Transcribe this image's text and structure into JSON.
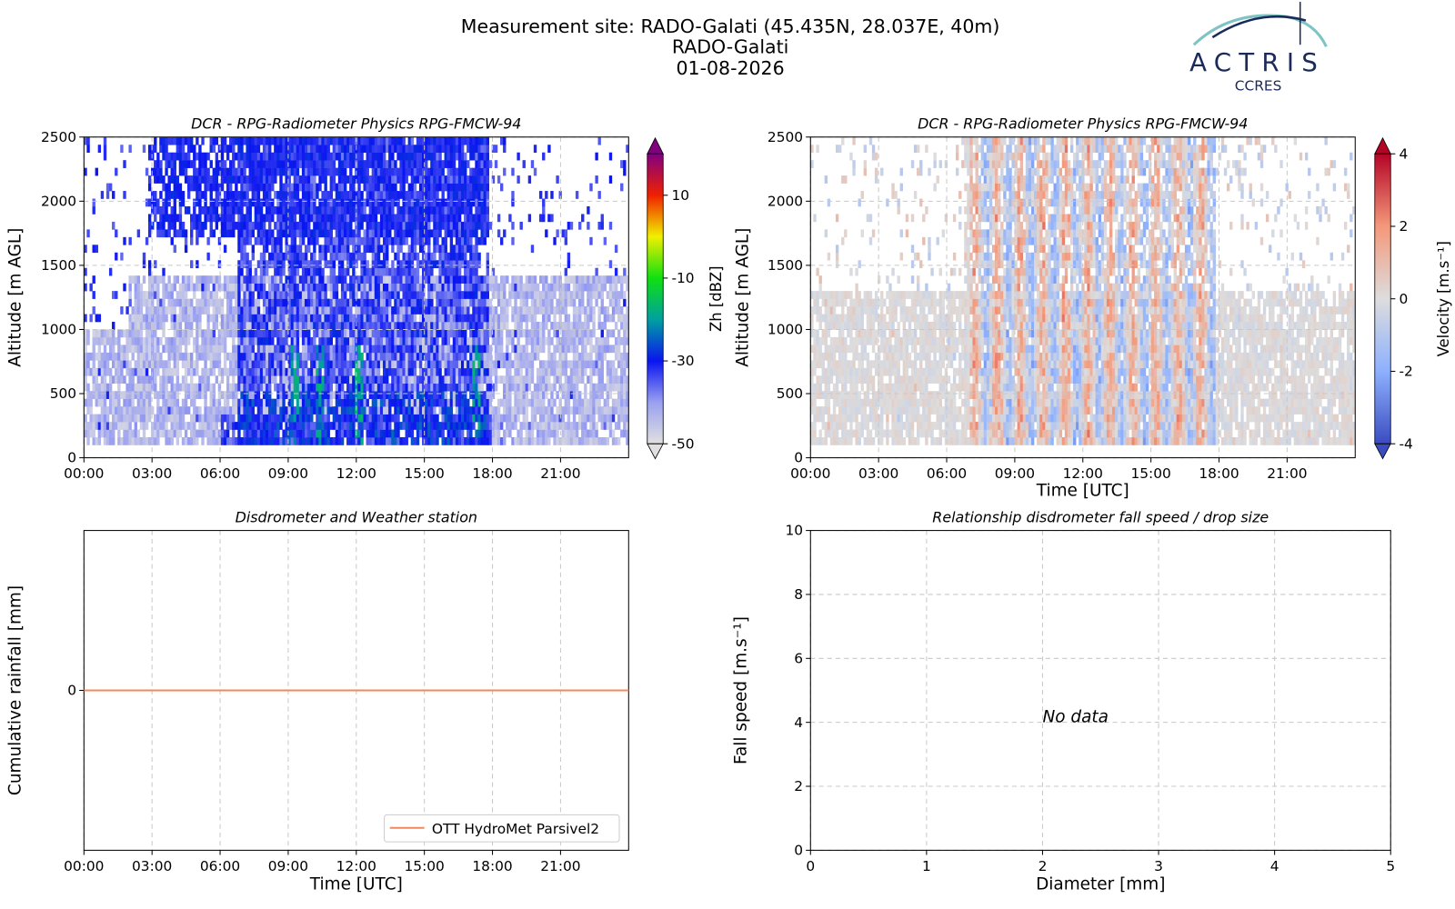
{
  "header": {
    "title": "Measurement site: RADO-Galati (45.435N, 28.037E, 40m)",
    "site": "RADO-Galati",
    "date": "01-08-2026"
  },
  "logo": {
    "name": "ACTRIS",
    "sub": "CCRES"
  },
  "chart_data": [
    {
      "type": "heatmap",
      "title": "DCR - RPG-Radiometer Physics RPG-FMCW-94",
      "y_label": "Altitude [m AGL]",
      "xlim": [
        0,
        24
      ],
      "xticks": [
        {
          "value": 0,
          "label": "00:00"
        },
        {
          "value": 3,
          "label": "03:00"
        },
        {
          "value": 6,
          "label": "06:00"
        },
        {
          "value": 9,
          "label": "09:00"
        },
        {
          "value": 12,
          "label": "12:00"
        },
        {
          "value": 15,
          "label": "15:00"
        },
        {
          "value": 18,
          "label": "18:00"
        },
        {
          "value": 21,
          "label": "21:00"
        }
      ],
      "ylim": [
        0,
        2500
      ],
      "yticks": [
        0,
        500,
        1000,
        1500,
        2000,
        2500
      ],
      "grid": true,
      "colorbar_label": "Zh [dBZ]",
      "clim": [
        -50,
        20
      ],
      "cticks": [
        -50,
        -30,
        -10,
        10
      ],
      "colormap": [
        "#e0e0e0",
        "#9aa0f0",
        "#0a14f0",
        "#00a0a0",
        "#10e010",
        "#f0f000",
        "#f02000",
        "#800080"
      ]
    },
    {
      "type": "heatmap",
      "title": "DCR - RPG-Radiometer Physics RPG-FMCW-94",
      "y_label": "Altitude [m AGL]",
      "x_label": "Time [UTC]",
      "xlim": [
        0,
        24
      ],
      "xticks": [
        {
          "value": 0,
          "label": "00:00"
        },
        {
          "value": 3,
          "label": "03:00"
        },
        {
          "value": 6,
          "label": "06:00"
        },
        {
          "value": 9,
          "label": "09:00"
        },
        {
          "value": 12,
          "label": "12:00"
        },
        {
          "value": 15,
          "label": "15:00"
        },
        {
          "value": 18,
          "label": "18:00"
        },
        {
          "value": 21,
          "label": "21:00"
        }
      ],
      "ylim": [
        0,
        2500
      ],
      "yticks": [
        0,
        500,
        1000,
        1500,
        2000,
        2500
      ],
      "grid": true,
      "colorbar_label": "Velocity [m.s⁻¹]",
      "clim": [
        -4,
        4
      ],
      "cticks": [
        -4,
        -2,
        0,
        2,
        4
      ],
      "colormap": [
        "#3b4cc0",
        "#8db0fe",
        "#dddddd",
        "#f4987a",
        "#b40426"
      ]
    },
    {
      "type": "line",
      "title": "Disdrometer and Weather station",
      "y_label": "Cumulative rainfall [mm]",
      "x_label": "Time [UTC]",
      "xlim": [
        0,
        24
      ],
      "xticks": [
        {
          "value": 0,
          "label": "00:00"
        },
        {
          "value": 3,
          "label": "03:00"
        },
        {
          "value": 6,
          "label": "06:00"
        },
        {
          "value": 9,
          "label": "09:00"
        },
        {
          "value": 12,
          "label": "12:00"
        },
        {
          "value": 15,
          "label": "15:00"
        },
        {
          "value": 18,
          "label": "18:00"
        },
        {
          "value": 21,
          "label": "21:00"
        }
      ],
      "ylim": [
        -0.055,
        0.055
      ],
      "yticks": [
        0
      ],
      "grid": true,
      "legend": "lower right",
      "series": [
        {
          "name": "OTT HydroMet Parsivel2",
          "color": "#f08a5d",
          "x": [
            0,
            24
          ],
          "values": [
            0,
            0
          ]
        }
      ]
    },
    {
      "type": "scatter",
      "title": "Relationship disdrometer fall speed / drop size",
      "y_label": "Fall speed [m.s⁻¹]",
      "x_label": "Diameter [mm]",
      "xlim": [
        0,
        5
      ],
      "xticks": [
        0,
        1,
        2,
        3,
        4,
        5
      ],
      "ylim": [
        0,
        10
      ],
      "yticks": [
        0,
        2,
        4,
        6,
        8,
        10
      ],
      "grid": true,
      "x": [],
      "values": [],
      "annotations": [
        {
          "text": "No data",
          "x": 2,
          "y": 4
        }
      ]
    }
  ]
}
